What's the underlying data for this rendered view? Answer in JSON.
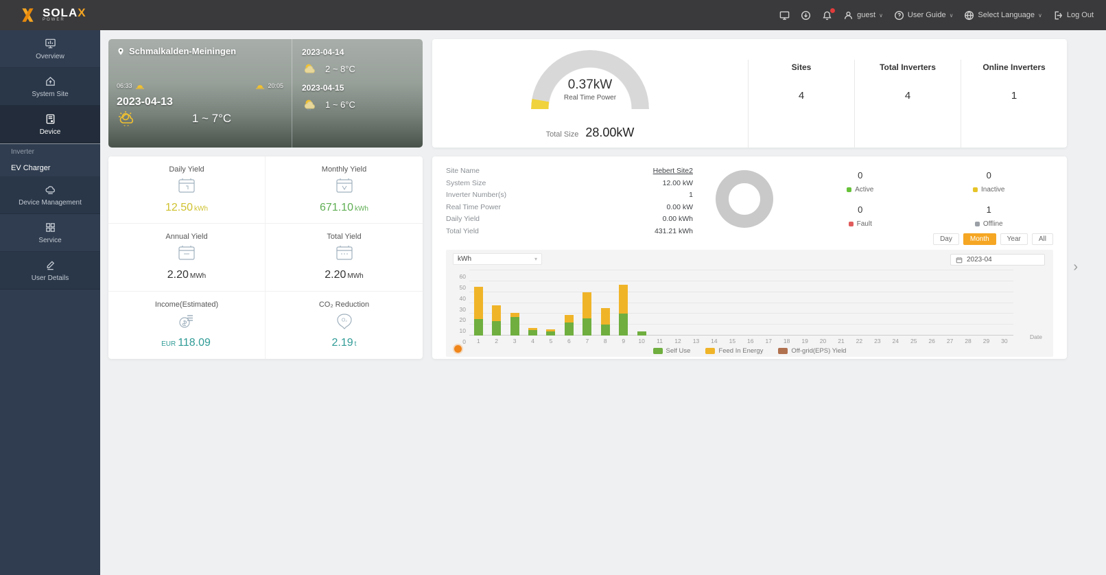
{
  "topbar": {
    "logo_text": "SOLA",
    "logo_x": "X",
    "logo_sub": "POWER",
    "guest_label": "guest",
    "user_guide_label": "User Guide",
    "select_language_label": "Select Language",
    "logout_label": "Log Out",
    "badge_color": "#e23b3b"
  },
  "sidebar": {
    "items": [
      {
        "label": "Overview"
      },
      {
        "label": "System Site"
      },
      {
        "label": "Device"
      },
      {
        "label": "Device Management"
      },
      {
        "label": "Service"
      },
      {
        "label": "User Details"
      }
    ],
    "device_children": [
      {
        "label": "Inverter"
      },
      {
        "label": "EV Charger"
      }
    ]
  },
  "weather": {
    "location": "Schmalkalden-Meiningen",
    "sunrise": "06:33",
    "sunset": "20:05",
    "today_date": "2023-04-13",
    "today_temp": "1 ~ 7°C",
    "forecast": [
      {
        "date": "2023-04-14",
        "temp": "2 ~ 8°C"
      },
      {
        "date": "2023-04-15",
        "temp": "1 ~ 6°C"
      }
    ]
  },
  "overview": {
    "real_time_power": "0.37kW",
    "real_time_power_label": "Real Time Power",
    "total_size_label": "Total Size",
    "total_size": "28.00kW",
    "gauge_color": "#f0d23c",
    "stats": [
      {
        "label": "Sites",
        "value": "4"
      },
      {
        "label": "Total Inverters",
        "value": "4"
      },
      {
        "label": "Online Inverters",
        "value": "1"
      }
    ]
  },
  "yield_cards": [
    {
      "label": "Daily Yield",
      "prefix": "",
      "value": "12.50",
      "unit": "kWh",
      "color": "#cfc12f"
    },
    {
      "label": "Monthly Yield",
      "prefix": "",
      "value": "671.10",
      "unit": "kWh",
      "color": "#5fae53"
    },
    {
      "label": "Annual Yield",
      "prefix": "",
      "value": "2.20",
      "unit": "MWh",
      "color": "#333333"
    },
    {
      "label": "Total Yield",
      "prefix": "",
      "value": "2.20",
      "unit": "MWh",
      "color": "#333333"
    },
    {
      "label": "Income(Estimated)",
      "prefix": "EUR",
      "value": "118.09",
      "unit": "",
      "color": "#2f9b96"
    },
    {
      "label": "CO₂ Reduction",
      "prefix": "",
      "value": "2.19",
      "unit": "t",
      "color": "#2f9b96"
    }
  ],
  "site_panel": {
    "rows": [
      {
        "label": "Site Name",
        "value": "Hebert Site2"
      },
      {
        "label": "System Size",
        "value": "12.00 kW"
      },
      {
        "label": "Inverter Number(s)",
        "value": "1"
      },
      {
        "label": "Real Time Power",
        "value": "0.00 kW"
      },
      {
        "label": "Daily Yield",
        "value": "0.00 kWh"
      },
      {
        "label": "Total Yield",
        "value": "431.21 kWh"
      }
    ],
    "statuses": [
      {
        "label": "Active",
        "count": "0",
        "color": "#67c23a"
      },
      {
        "label": "Inactive",
        "count": "0",
        "color": "#e6c428"
      },
      {
        "label": "Fault",
        "count": "0",
        "color": "#e05c5c"
      },
      {
        "label": "Offline",
        "count": "1",
        "color": "#9aa0a6"
      }
    ],
    "periods": [
      {
        "label": "Day"
      },
      {
        "label": "Month"
      },
      {
        "label": "Year"
      },
      {
        "label": "All"
      }
    ],
    "active_period": "Month",
    "unit_select": "kWh",
    "date_value": "2023-04"
  },
  "chart_data": {
    "type": "bar",
    "stacked": true,
    "x_start": 1,
    "x_end": 30,
    "xlabel": "Date",
    "ylabel": "kWh",
    "ylim": [
      0,
      60
    ],
    "yticks": [
      0,
      10,
      20,
      30,
      40,
      50,
      60
    ],
    "grid": true,
    "legend_position": "bottom",
    "series": [
      {
        "name": "Self Use",
        "color": "#6fae3f",
        "values": [
          15,
          13,
          17,
          5,
          4,
          12,
          16,
          10,
          20,
          4,
          0,
          0,
          0,
          0,
          0,
          0,
          0,
          0,
          0,
          0,
          0,
          0,
          0,
          0,
          0,
          0,
          0,
          0,
          0,
          0
        ]
      },
      {
        "name": "Feed In Energy",
        "color": "#f0b429",
        "values": [
          30,
          15,
          4,
          2,
          2,
          7,
          24,
          15,
          27,
          0,
          0,
          0,
          0,
          0,
          0,
          0,
          0,
          0,
          0,
          0,
          0,
          0,
          0,
          0,
          0,
          0,
          0,
          0,
          0,
          0
        ]
      },
      {
        "name": "Off-grid(EPS) Yield",
        "color": "#b0714f",
        "values": [
          0,
          0,
          0,
          0,
          0,
          0,
          0,
          0,
          0,
          0,
          0,
          0,
          0,
          0,
          0,
          0,
          0,
          0,
          0,
          0,
          0,
          0,
          0,
          0,
          0,
          0,
          0,
          0,
          0,
          0
        ]
      }
    ]
  }
}
